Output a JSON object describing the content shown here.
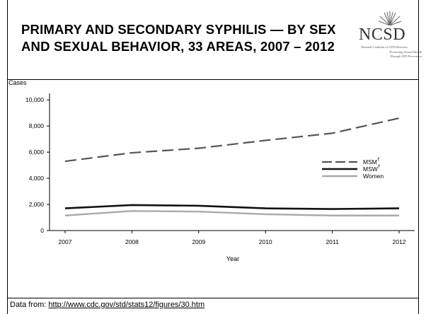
{
  "slide": {
    "title": "PRIMARY AND SECONDARY SYPHILIS — BY SEX AND SEXUAL BEHAVIOR, 33 AREAS, 2007 – 2012",
    "logo": {
      "abbr": "NCSD",
      "subtitle": "National Coalition of STD Directors",
      "tagline_1": "Promoting Sexual Health",
      "tagline_2": "Through STD Prevention"
    },
    "footer": {
      "prefix": "Data from: ",
      "link_text": "http://www.cdc.gov/std/stats12/figures/30.htm"
    }
  },
  "chart_data": {
    "type": "line",
    "title": "",
    "xlabel": "Year",
    "ylabel": "Cases",
    "x": [
      2007,
      2008,
      2009,
      2010,
      2011,
      2012
    ],
    "x_tick_labels": [
      "2007",
      "2008",
      "2009",
      "2010",
      "2011",
      "2012"
    ],
    "ylim": [
      0,
      10500
    ],
    "y_ticks": [
      0,
      2000,
      4000,
      6000,
      8000,
      10000
    ],
    "y_tick_labels": [
      "0",
      "2,000",
      "4,000",
      "6,000",
      "8,000",
      "10,000"
    ],
    "grid": false,
    "legend_position": "right",
    "series": [
      {
        "name": "MSM",
        "marker": "†",
        "style": "dashed",
        "color": "#555555",
        "values": [
          5300,
          5950,
          6300,
          6900,
          7450,
          8600
        ]
      },
      {
        "name": "MSW",
        "marker": "†",
        "style": "solid",
        "color": "#111111",
        "values": [
          1700,
          1950,
          1900,
          1700,
          1650,
          1700
        ]
      },
      {
        "name": "Women",
        "marker": "",
        "style": "solid",
        "color": "#aaaaaa",
        "values": [
          1150,
          1500,
          1450,
          1250,
          1150,
          1150
        ]
      }
    ]
  }
}
